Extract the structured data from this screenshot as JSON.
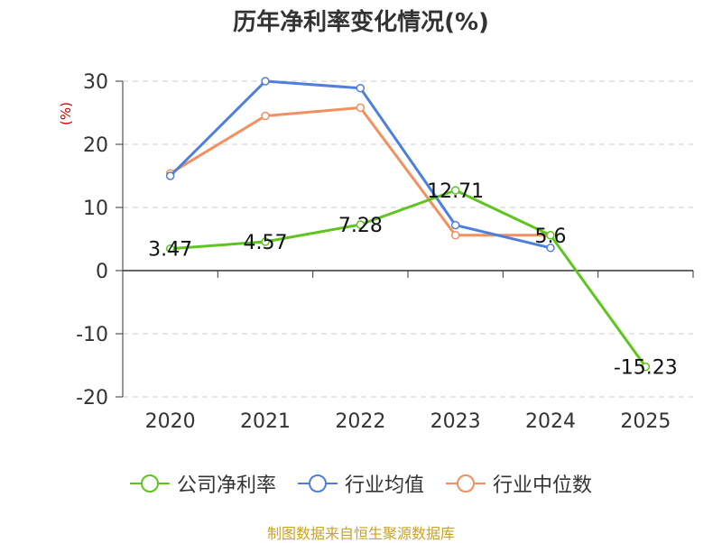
{
  "chart_data": {
    "type": "line",
    "title": "历年净利率变化情况(%)",
    "ylabel": "(%)",
    "xlabel": "",
    "categories": [
      "2020",
      "2021",
      "2022",
      "2023",
      "2024",
      "2025"
    ],
    "ylim": [
      -20,
      30
    ],
    "yticks": [
      "30",
      "20",
      "10",
      "0",
      "-10",
      "-20"
    ],
    "ytick_values": [
      30,
      20,
      10,
      0,
      -10,
      -20
    ],
    "grid": true,
    "legend_position": "bottom",
    "series": [
      {
        "name": "公司净利率",
        "color": "#5ec51f",
        "values": [
          3.47,
          4.57,
          7.28,
          12.71,
          5.6,
          -15.23
        ],
        "labels": [
          "3.47",
          "4.57",
          "7.28",
          "12.71",
          "5.6",
          "-15.23"
        ]
      },
      {
        "name": "行业均值",
        "color": "#4e7fdb",
        "values": [
          15.0,
          30.0,
          28.9,
          7.2,
          3.6,
          null
        ]
      },
      {
        "name": "行业中位数",
        "color": "#f2905f",
        "values": [
          15.4,
          24.5,
          25.8,
          5.6,
          5.6,
          null
        ]
      }
    ],
    "source": "制图数据来自恒生聚源数据库"
  }
}
